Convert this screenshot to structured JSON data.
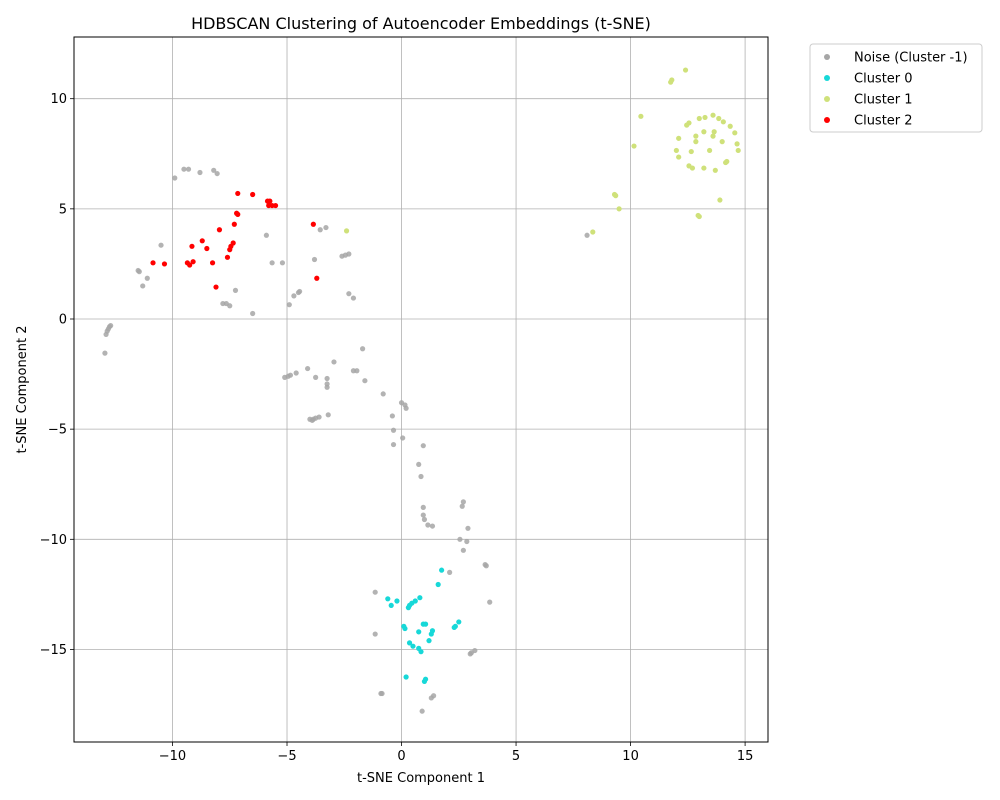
{
  "chart_data": {
    "type": "scatter",
    "title": "HDBSCAN Clustering of Autoencoder Embeddings (t-SNE)",
    "xlabel": "t-SNE Component 1",
    "ylabel": "t-SNE Component 2",
    "xlim": [
      -14.3,
      16.0
    ],
    "ylim": [
      -19.2,
      12.8
    ],
    "xticks": [
      -10,
      -5,
      0,
      5,
      10,
      15
    ],
    "yticks": [
      -15,
      -10,
      -5,
      0,
      5,
      10
    ],
    "tick_labels_x": [
      "−10",
      "−5",
      "0",
      "5",
      "10",
      "15"
    ],
    "tick_labels_y": [
      "−15",
      "−10",
      "−5",
      "0",
      "5",
      "10"
    ],
    "grid": true,
    "legend_position": "outside-top-right",
    "series": [
      {
        "name": "Noise (Cluster -1)",
        "color": "#a6a6a6",
        "points": [
          [
            -9.9,
            6.4
          ],
          [
            -9.5,
            6.8
          ],
          [
            -9.3,
            6.8
          ],
          [
            -8.8,
            6.65
          ],
          [
            -8.2,
            6.75
          ],
          [
            -8.05,
            6.6
          ],
          [
            -10.5,
            3.35
          ],
          [
            -11.5,
            2.2
          ],
          [
            -11.45,
            2.15
          ],
          [
            -11.1,
            1.85
          ],
          [
            -11.3,
            1.5
          ],
          [
            -12.7,
            -0.3
          ],
          [
            -12.75,
            -0.35
          ],
          [
            -12.8,
            -0.45
          ],
          [
            -12.85,
            -0.55
          ],
          [
            -12.9,
            -0.7
          ],
          [
            -12.95,
            -1.55
          ],
          [
            -7.8,
            0.7
          ],
          [
            -7.65,
            0.7
          ],
          [
            -7.5,
            0.6
          ],
          [
            -7.25,
            1.3
          ],
          [
            -6.5,
            0.25
          ],
          [
            -5.9,
            3.8
          ],
          [
            -5.65,
            2.55
          ],
          [
            -5.2,
            2.55
          ],
          [
            -4.9,
            0.65
          ],
          [
            -4.7,
            1.05
          ],
          [
            -4.5,
            1.2
          ],
          [
            -4.45,
            1.25
          ],
          [
            -3.8,
            2.7
          ],
          [
            -3.55,
            4.05
          ],
          [
            -3.3,
            4.15
          ],
          [
            -2.6,
            2.85
          ],
          [
            -2.45,
            2.9
          ],
          [
            -2.3,
            2.95
          ],
          [
            -2.3,
            1.15
          ],
          [
            -2.1,
            0.95
          ],
          [
            -5.1,
            -2.65
          ],
          [
            -4.95,
            -2.6
          ],
          [
            -4.85,
            -2.55
          ],
          [
            -4.6,
            -2.45
          ],
          [
            -4.1,
            -2.25
          ],
          [
            -3.75,
            -2.65
          ],
          [
            -3.25,
            -2.7
          ],
          [
            -3.25,
            -2.95
          ],
          [
            -3.25,
            -3.1
          ],
          [
            -2.95,
            -1.95
          ],
          [
            -2.1,
            -2.35
          ],
          [
            -1.95,
            -2.35
          ],
          [
            -1.7,
            -1.35
          ],
          [
            -1.6,
            -2.8
          ],
          [
            -0.8,
            -3.4
          ],
          [
            -4.0,
            -4.55
          ],
          [
            -3.9,
            -4.6
          ],
          [
            -3.85,
            -4.55
          ],
          [
            -3.75,
            -4.5
          ],
          [
            -3.6,
            -4.45
          ],
          [
            -3.2,
            -4.35
          ],
          [
            0.0,
            -3.8
          ],
          [
            0.15,
            -3.9
          ],
          [
            0.2,
            -4.05
          ],
          [
            -0.4,
            -4.4
          ],
          [
            -0.35,
            -5.05
          ],
          [
            -0.35,
            -5.7
          ],
          [
            0.05,
            -5.4
          ],
          [
            0.95,
            -5.75
          ],
          [
            0.75,
            -6.6
          ],
          [
            0.85,
            -7.15
          ],
          [
            0.95,
            -8.55
          ],
          [
            0.95,
            -8.9
          ],
          [
            1.0,
            -9.1
          ],
          [
            1.15,
            -9.35
          ],
          [
            1.35,
            -9.4
          ],
          [
            2.7,
            -8.3
          ],
          [
            2.65,
            -8.5
          ],
          [
            2.9,
            -9.5
          ],
          [
            2.55,
            -10.0
          ],
          [
            2.85,
            -10.1
          ],
          [
            2.7,
            -10.5
          ],
          [
            2.1,
            -11.5
          ],
          [
            3.65,
            -11.15
          ],
          [
            3.7,
            -11.2
          ],
          [
            3.85,
            -12.85
          ],
          [
            -1.15,
            -12.4
          ],
          [
            -1.15,
            -14.3
          ],
          [
            3.2,
            -15.05
          ],
          [
            3.05,
            -15.15
          ],
          [
            3.0,
            -15.2
          ],
          [
            -0.9,
            -17.0
          ],
          [
            -0.85,
            -17.0
          ],
          [
            1.4,
            -17.1
          ],
          [
            1.3,
            -17.2
          ],
          [
            0.9,
            -17.8
          ],
          [
            8.1,
            3.8
          ]
        ]
      },
      {
        "name": "Cluster 0",
        "color": "#17d8d8",
        "points": [
          [
            1.75,
            -11.4
          ],
          [
            1.6,
            -12.05
          ],
          [
            0.8,
            -12.65
          ],
          [
            0.6,
            -12.8
          ],
          [
            0.45,
            -12.9
          ],
          [
            0.35,
            -13.0
          ],
          [
            0.3,
            -13.1
          ],
          [
            -0.6,
            -12.7
          ],
          [
            -0.2,
            -12.8
          ],
          [
            -0.45,
            -13.0
          ],
          [
            2.5,
            -13.75
          ],
          [
            2.35,
            -13.95
          ],
          [
            2.3,
            -14.0
          ],
          [
            0.95,
            -13.85
          ],
          [
            1.05,
            -13.85
          ],
          [
            0.1,
            -13.95
          ],
          [
            0.15,
            -14.05
          ],
          [
            1.35,
            -14.15
          ],
          [
            1.3,
            -14.3
          ],
          [
            0.75,
            -14.2
          ],
          [
            1.2,
            -14.6
          ],
          [
            0.35,
            -14.7
          ],
          [
            0.5,
            -14.85
          ],
          [
            0.75,
            -14.95
          ],
          [
            0.85,
            -15.1
          ],
          [
            0.2,
            -16.25
          ],
          [
            1.05,
            -16.35
          ],
          [
            1.0,
            -16.45
          ]
        ]
      },
      {
        "name": "Cluster 1",
        "color": "#cfe17a",
        "points": [
          [
            12.4,
            11.3
          ],
          [
            11.8,
            10.85
          ],
          [
            11.75,
            10.75
          ],
          [
            10.45,
            9.2
          ],
          [
            13.0,
            9.1
          ],
          [
            13.25,
            9.15
          ],
          [
            13.6,
            9.25
          ],
          [
            13.85,
            9.1
          ],
          [
            14.05,
            8.95
          ],
          [
            12.55,
            8.9
          ],
          [
            12.45,
            8.8
          ],
          [
            14.35,
            8.75
          ],
          [
            14.55,
            8.45
          ],
          [
            13.2,
            8.5
          ],
          [
            13.65,
            8.5
          ],
          [
            12.85,
            8.3
          ],
          [
            13.6,
            8.3
          ],
          [
            12.1,
            8.2
          ],
          [
            12.85,
            8.05
          ],
          [
            14.0,
            8.05
          ],
          [
            14.65,
            7.95
          ],
          [
            10.15,
            7.85
          ],
          [
            12.0,
            7.65
          ],
          [
            12.65,
            7.6
          ],
          [
            13.45,
            7.65
          ],
          [
            14.7,
            7.65
          ],
          [
            12.1,
            7.35
          ],
          [
            14.2,
            7.15
          ],
          [
            14.15,
            7.1
          ],
          [
            12.55,
            6.95
          ],
          [
            12.7,
            6.85
          ],
          [
            13.2,
            6.85
          ],
          [
            13.7,
            6.75
          ],
          [
            9.35,
            5.6
          ],
          [
            9.3,
            5.65
          ],
          [
            13.9,
            5.4
          ],
          [
            9.5,
            5.0
          ],
          [
            13.0,
            4.65
          ],
          [
            12.95,
            4.7
          ],
          [
            8.35,
            3.95
          ],
          [
            -2.4,
            4.0
          ]
        ]
      },
      {
        "name": "Cluster 2",
        "color": "#ff0000",
        "points": [
          [
            -7.15,
            5.7
          ],
          [
            -6.5,
            5.65
          ],
          [
            -5.85,
            5.35
          ],
          [
            -5.75,
            5.35
          ],
          [
            -5.8,
            5.15
          ],
          [
            -5.65,
            5.15
          ],
          [
            -5.5,
            5.15
          ],
          [
            -7.15,
            4.75
          ],
          [
            -7.2,
            4.8
          ],
          [
            -7.3,
            4.3
          ],
          [
            -3.85,
            4.3
          ],
          [
            -7.95,
            4.05
          ],
          [
            -8.7,
            3.55
          ],
          [
            -7.35,
            3.45
          ],
          [
            -7.45,
            3.3
          ],
          [
            -9.15,
            3.3
          ],
          [
            -8.5,
            3.2
          ],
          [
            -7.5,
            3.15
          ],
          [
            -7.6,
            2.8
          ],
          [
            -10.85,
            2.55
          ],
          [
            -10.35,
            2.5
          ],
          [
            -9.1,
            2.6
          ],
          [
            -9.35,
            2.55
          ],
          [
            -9.25,
            2.45
          ],
          [
            -8.25,
            2.55
          ],
          [
            -3.7,
            1.85
          ],
          [
            -8.1,
            1.45
          ]
        ]
      }
    ]
  }
}
